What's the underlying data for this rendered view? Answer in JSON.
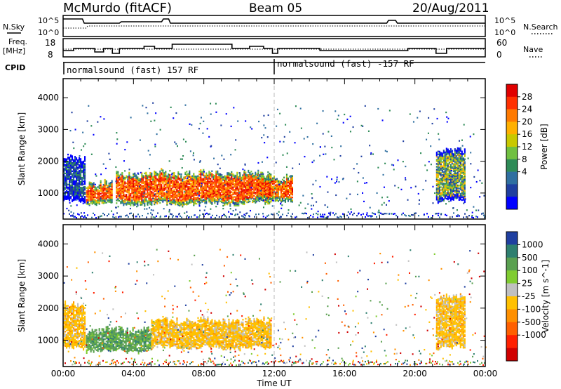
{
  "header": {
    "station": "McMurdo (fitACF)",
    "beam": "Beam 05",
    "date": "20/Aug/2011"
  },
  "aux_panels": {
    "nsky": {
      "label": "N.Sky",
      "ticks": [
        "10^5",
        "10^0"
      ]
    },
    "nsearch": {
      "label": "N.Search",
      "ticks": [
        "10^5",
        "10^0"
      ]
    },
    "freq": {
      "label_line1": "Freq.",
      "label_line2": "[MHz]",
      "ticks": [
        "18",
        "8"
      ]
    },
    "nave": {
      "label": "Nave",
      "ticks": [
        "60",
        "0"
      ]
    },
    "cpid": {
      "label": "CPID",
      "segments": [
        {
          "text": "normalsound (fast) 157 RF",
          "start_hour": 0
        },
        {
          "text": "normalsound (fast) -157 RF",
          "start_hour": 12
        }
      ]
    }
  },
  "colorbars": {
    "power": {
      "label": "Power [dB]",
      "ticks": [
        "28",
        "24",
        "20",
        "16",
        "12",
        "8",
        "4"
      ],
      "colors": [
        "#e00000",
        "#ff3000",
        "#ff7a00",
        "#ffb000",
        "#c8c800",
        "#70c040",
        "#2e8b57",
        "#2f6fa0",
        "#1f3fa0",
        "#0000ff"
      ]
    },
    "velocity": {
      "label": "Velocity [m s^-1]",
      "ticks": [
        "1000",
        "500",
        "100",
        "25",
        "-25",
        "-100",
        "-500",
        "-1000"
      ],
      "colors": [
        "#1f3fa0",
        "#2e7f6f",
        "#5aa050",
        "#80cc30",
        "#c0c0c0",
        "#ffc000",
        "#ff9000",
        "#ff6000",
        "#ff2000",
        "#d00000"
      ]
    }
  },
  "chart_data": [
    {
      "type": "heatmap",
      "title": "Power",
      "ylabel": "Slant Range [km]",
      "yticks": [
        1000,
        2000,
        3000,
        4000
      ],
      "ylim": [
        180,
        4600
      ],
      "xlim": [
        0,
        24
      ],
      "colorbar_label": "Power [dB]",
      "regions": [
        {
          "x": [
            0.0,
            1.2
          ],
          "y": [
            700,
            2200
          ],
          "level": "low"
        },
        {
          "x": [
            1.3,
            2.8
          ],
          "y": [
            600,
            1400
          ],
          "level": "high"
        },
        {
          "x": [
            3.0,
            11.8
          ],
          "y": [
            600,
            1700
          ],
          "level": "high"
        },
        {
          "x": [
            11.0,
            13.0
          ],
          "y": [
            700,
            1600
          ],
          "level": "high"
        },
        {
          "x": [
            21.2,
            22.8
          ],
          "y": [
            700,
            2400
          ],
          "level": "mid"
        }
      ]
    },
    {
      "type": "heatmap",
      "title": "Velocity",
      "ylabel": "Slant Range [km]",
      "yticks": [
        1000,
        2000,
        3000,
        4000
      ],
      "ylim": [
        180,
        4600
      ],
      "xlim": [
        0,
        24
      ],
      "colorbar_label": "Velocity [m s^-1]",
      "regions": [
        {
          "x": [
            0.0,
            1.2
          ],
          "y": [
            700,
            2200
          ],
          "value": -100
        },
        {
          "x": [
            1.3,
            5.0
          ],
          "y": [
            600,
            1400
          ],
          "value": 100
        },
        {
          "x": [
            5.0,
            11.8
          ],
          "y": [
            700,
            1700
          ],
          "value": -100
        },
        {
          "x": [
            21.2,
            22.8
          ],
          "y": [
            700,
            2400
          ],
          "value": -100
        }
      ]
    }
  ],
  "time_axis": {
    "label": "Time UT",
    "ticks": [
      "00:00",
      "04:00",
      "08:00",
      "12:00",
      "16:00",
      "20:00",
      "00:00"
    ]
  }
}
